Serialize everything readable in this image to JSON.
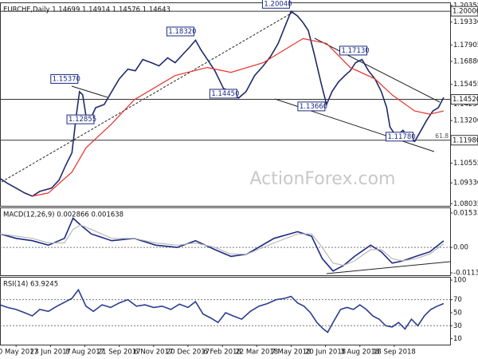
{
  "chart_data": [
    {
      "type": "line",
      "title": "EURCHF,Daily  1.14699 1.14914 1.14576 1.14643",
      "watermark": "ActionForex.com",
      "xlim": [
        -15,
        404
      ],
      "ylim": [
        1.079,
        1.2055
      ],
      "yticks": [
        1.20355,
        {
          "value": 1.1933,
          "label": "1.19330"
        },
        1.17905,
        {
          "value": 1.1688,
          "label": "1.16880"
        },
        1.15455,
        {
          "value": 1.1423,
          "label": "1.14230"
        },
        {
          "value": 1.132,
          "label": "1.13200"
        },
        1.10555,
        {
          "value": 1.0933,
          "label": "1.09330"
        },
        1.08035
      ],
      "series": [
        {
          "name": "EURCHF",
          "color": "#1f2a6b",
          "x": [
            -15,
            -8,
            0,
            8,
            15,
            22,
            33,
            40,
            46,
            52,
            56,
            59,
            62,
            65,
            68,
            74,
            82,
            89,
            96,
            104,
            111,
            118,
            126,
            133,
            141,
            148,
            155,
            162,
            167,
            172,
            178,
            185,
            193,
            200,
            207,
            214,
            222,
            230,
            237,
            244,
            250,
            256,
            262,
            267,
            272,
            278,
            284,
            289,
            294,
            300,
            306,
            311,
            316,
            322,
            328,
            334,
            340,
            345,
            348,
            354,
            360,
            366,
            371,
            377,
            382,
            388,
            393,
            398
          ],
          "values": [
            1.096,
            1.093,
            1.09,
            1.087,
            1.085,
            1.088,
            1.09,
            1.095,
            1.104,
            1.112,
            1.135,
            1.15,
            1.148,
            1.135,
            1.131,
            1.14,
            1.142,
            1.15,
            1.158,
            1.164,
            1.163,
            1.17,
            1.168,
            1.166,
            1.171,
            1.168,
            1.173,
            1.178,
            1.182,
            1.176,
            1.17,
            1.163,
            1.152,
            1.15,
            1.146,
            1.15,
            1.16,
            1.166,
            1.172,
            1.18,
            1.19,
            1.2,
            1.197,
            1.193,
            1.188,
            1.172,
            1.155,
            1.142,
            1.15,
            1.156,
            1.16,
            1.163,
            1.168,
            1.17,
            1.163,
            1.158,
            1.15,
            1.14,
            1.128,
            1.122,
            1.126,
            1.121,
            1.119,
            1.126,
            1.132,
            1.138,
            1.14,
            1.1464
          ]
        },
        {
          "name": "MA",
          "color": "#e8322b",
          "x": [
            15,
            30,
            52,
            65,
            89,
            110,
            148,
            178,
            200,
            230,
            267,
            289,
            311,
            334,
            350,
            371,
            385,
            398
          ],
          "values": [
            1.085,
            1.087,
            1.1,
            1.115,
            1.13,
            1.145,
            1.16,
            1.165,
            1.162,
            1.168,
            1.183,
            1.18,
            1.165,
            1.158,
            1.148,
            1.138,
            1.136,
            1.138
          ]
        }
      ],
      "levels": [
        {
          "value": 1.2,
          "label": "1.20000"
        },
        {
          "value": 1.1452,
          "label": "1.14520"
        },
        {
          "value": 1.1198,
          "label": "1.11980"
        }
      ],
      "fib_label": "61.8",
      "annotations": [
        {
          "x": 256,
          "value": 1.2004,
          "label": "1.20040"
        },
        {
          "x": 167,
          "value": 1.1832,
          "label": "1.18320"
        },
        {
          "x": 59,
          "value": 1.1537,
          "label": "1.15370"
        },
        {
          "x": 74,
          "value": 1.12855,
          "label": "1.12855"
        },
        {
          "x": 207,
          "value": 1.1445,
          "label": "1.14450"
        },
        {
          "x": 289,
          "value": 1.1366,
          "label": "1.13660"
        },
        {
          "x": 328,
          "value": 1.1713,
          "label": "1.17130"
        },
        {
          "x": 371,
          "value": 1.1178,
          "label": "1.11780"
        }
      ]
    },
    {
      "type": "line",
      "title": "MACD(12,26,9) 0.002866 0.001638",
      "xlim": [
        -15,
        404
      ],
      "ylim": [
        -0.0124,
        0.0178
      ],
      "yticks": [
        0.015338,
        {
          "value": 0,
          "label": "0.00"
        },
        -0.011344
      ],
      "hlines": [
        0
      ],
      "series": [
        {
          "name": "MACD",
          "color": "#1c2a80",
          "x": [
            -15,
            0,
            15,
            30,
            45,
            53,
            60,
            70,
            89,
            110,
            130,
            150,
            167,
            185,
            200,
            215,
            240,
            262,
            275,
            285,
            295,
            305,
            315,
            330,
            340,
            350,
            360,
            372,
            385,
            398
          ],
          "values": [
            0.006,
            0.004,
            0.003,
            0.001,
            0.004,
            0.013,
            0.01,
            0.006,
            0.003,
            0.004,
            0.001,
            0.0,
            0.003,
            -0.001,
            -0.004,
            -0.003,
            0.004,
            0.007,
            0.005,
            -0.005,
            -0.0105,
            -0.008,
            -0.004,
            0.001,
            -0.002,
            -0.007,
            -0.006,
            -0.004,
            -0.002,
            0.0029
          ]
        },
        {
          "name": "Signal",
          "color": "#b8b8b8",
          "x": [
            -15,
            0,
            15,
            30,
            45,
            53,
            60,
            70,
            89,
            110,
            130,
            150,
            167,
            185,
            200,
            215,
            240,
            262,
            275,
            285,
            295,
            305,
            315,
            330,
            340,
            350,
            360,
            372,
            385,
            398
          ],
          "values": [
            0.006,
            0.005,
            0.004,
            0.002,
            0.002,
            0.008,
            0.01,
            0.008,
            0.004,
            0.004,
            0.002,
            0.001,
            0.002,
            0.0,
            -0.003,
            -0.003,
            0.002,
            0.006,
            0.006,
            0.0,
            -0.007,
            -0.008,
            -0.006,
            -0.001,
            -0.001,
            -0.005,
            -0.006,
            -0.005,
            -0.003,
            0.0016
          ]
        }
      ]
    },
    {
      "type": "line",
      "title": "RSI(14) 63.9245",
      "xlim": [
        -15,
        404
      ],
      "ylim": [
        1,
        105
      ],
      "yticks": [
        100,
        70,
        50,
        30,
        10
      ],
      "hlines": [
        70,
        30
      ],
      "series": [
        {
          "name": "RSI",
          "color": "#2b3d8f",
          "x": [
            -15,
            -8,
            0,
            8,
            15,
            22,
            30,
            38,
            45,
            52,
            58,
            65,
            72,
            80,
            88,
            96,
            104,
            112,
            120,
            128,
            136,
            144,
            152,
            160,
            167,
            174,
            181,
            188,
            195,
            202,
            210,
            218,
            226,
            234,
            242,
            250,
            256,
            262,
            268,
            274,
            280,
            286,
            290,
            296,
            302,
            308,
            314,
            320,
            326,
            332,
            338,
            344,
            350,
            356,
            362,
            368,
            374,
            380,
            386,
            392,
            398
          ],
          "values": [
            62,
            58,
            55,
            50,
            45,
            55,
            52,
            60,
            66,
            72,
            85,
            60,
            52,
            62,
            58,
            65,
            70,
            60,
            62,
            58,
            60,
            55,
            63,
            58,
            67,
            48,
            42,
            35,
            50,
            45,
            40,
            52,
            60,
            64,
            70,
            72,
            75,
            65,
            60,
            50,
            35,
            25,
            20,
            38,
            55,
            58,
            55,
            62,
            55,
            45,
            40,
            30,
            28,
            35,
            25,
            40,
            30,
            45,
            55,
            60,
            64
          ]
        }
      ],
      "xticks": [
        {
          "value": 0,
          "label": "10 May 2017"
        },
        {
          "value": 32,
          "label": "23 Jun 2017"
        },
        {
          "value": 64,
          "label": "8 Aug 2017"
        },
        {
          "value": 96,
          "label": "21 Sep 2017"
        },
        {
          "value": 128,
          "label": "6 Nov 2017"
        },
        {
          "value": 160,
          "label": "20 Dec 2017"
        },
        {
          "value": 192,
          "label": "6 Feb 2018"
        },
        {
          "value": 224,
          "label": "22 Mar 2018"
        },
        {
          "value": 256,
          "label": "7 May 2018"
        },
        {
          "value": 288,
          "label": "20 Jun 2018"
        },
        {
          "value": 320,
          "label": "3 Aug 2018"
        },
        {
          "value": 352,
          "label": "18 Sep 2018"
        }
      ]
    }
  ]
}
